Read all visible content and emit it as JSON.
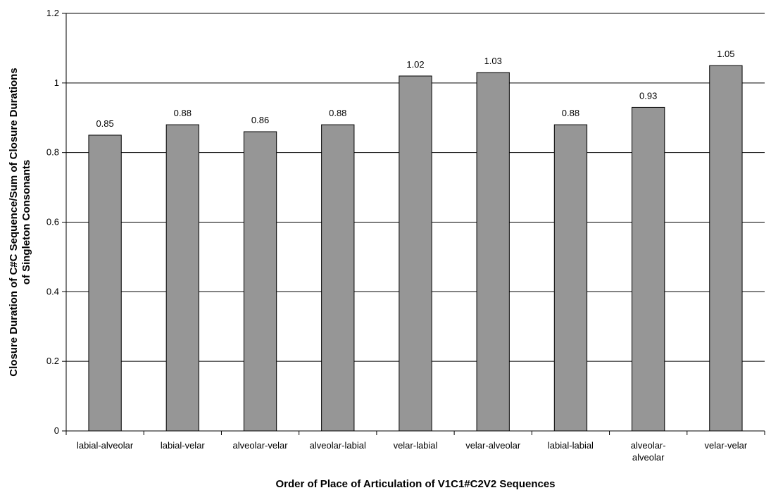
{
  "chart_data": {
    "type": "bar",
    "categories": [
      [
        "labial-alveolar"
      ],
      [
        "labial-velar"
      ],
      [
        "alveolar-velar"
      ],
      [
        "alveolar-labial"
      ],
      [
        "velar-labial"
      ],
      [
        "velar-alveolar"
      ],
      [
        "labial-labial"
      ],
      [
        "alveolar-",
        "alveolar"
      ],
      [
        "velar-velar"
      ]
    ],
    "values": [
      0.85,
      0.88,
      0.86,
      0.88,
      1.02,
      1.03,
      0.88,
      0.93,
      1.05
    ],
    "data_labels": [
      "0.85",
      "0.88",
      "0.86",
      "0.88",
      "1.02",
      "1.03",
      "0.88",
      "0.93",
      "1.05"
    ],
    "xlabel": "Order of Place of Articulation of V1C1#C2V2 Sequences",
    "ylabel": [
      "Closure Duration of C#C Sequence/Sum of Closure Durations",
      "of Singleton Consonants"
    ],
    "ylim": [
      0,
      1.2
    ],
    "yticks": [
      0,
      0.2,
      0.4,
      0.6,
      0.8,
      1,
      1.2
    ],
    "ytick_labels": [
      "0",
      "0.2",
      "0.4",
      "0.6",
      "0.8",
      "1",
      "1.2"
    ],
    "grid": true,
    "legend": "none",
    "colors": {
      "bar": "#969696",
      "bar_edge": "#000000",
      "grid": "#000000",
      "axis": "#000000"
    }
  }
}
